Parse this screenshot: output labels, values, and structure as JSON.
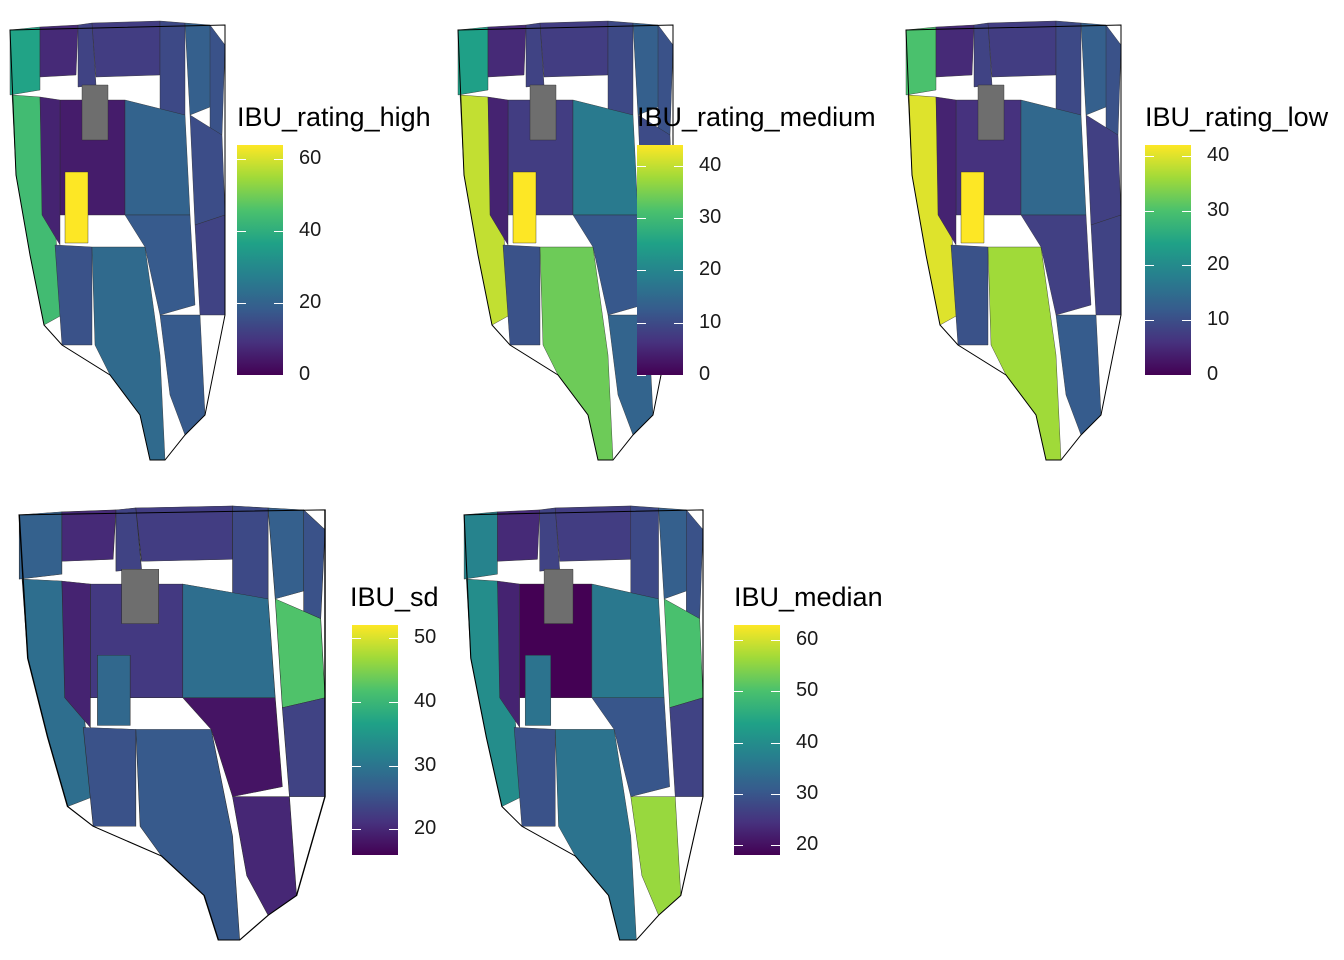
{
  "palette": {
    "viridis": [
      "#440154",
      "#46327e",
      "#365c8d",
      "#277f8e",
      "#1fa187",
      "#4ac16d",
      "#a0da39",
      "#fde725"
    ],
    "missing": "#6e6e6e",
    "outline": "#000000"
  },
  "maps": [
    {
      "id": "ibu-rating-high",
      "legend": {
        "title": "IBU_rating_high",
        "ticks": [
          "0",
          "20",
          "40",
          "60"
        ],
        "tick_values": [
          0,
          20,
          40,
          60
        ],
        "range": [
          0,
          64
        ]
      },
      "highlights": {
        "west-coast": 44,
        "utah": 64,
        "washington": 37,
        "north-central": 5,
        "midwest": 20,
        "south": 18,
        "texas": 22,
        "florida": 18,
        "northeast": 15
      }
    },
    {
      "id": "ibu-rating-medium",
      "legend": {
        "title": "IBU_rating_medium",
        "ticks": [
          "0",
          "10",
          "20",
          "30",
          "40"
        ],
        "tick_values": [
          0,
          10,
          20,
          30,
          40
        ],
        "range": [
          0,
          44
        ]
      },
      "highlights": {
        "west-coast": 40,
        "utah": 44,
        "washington": 25,
        "north-central": 8,
        "midwest": 18,
        "south": 12,
        "texas": 34,
        "florida": 14,
        "northeast": 10
      }
    },
    {
      "id": "ibu-rating-low",
      "legend": {
        "title": "IBU_rating_low",
        "ticks": [
          "0",
          "10",
          "20",
          "30",
          "40"
        ],
        "tick_values": [
          0,
          10,
          20,
          30,
          40
        ],
        "range": [
          0,
          42
        ]
      },
      "highlights": {
        "west-coast": 40,
        "utah": 42,
        "washington": 30,
        "north-central": 6,
        "midwest": 14,
        "south": 8,
        "texas": 36,
        "florida": 12,
        "northeast": 8
      }
    },
    {
      "id": "ibu-sd",
      "legend": {
        "title": "IBU_sd",
        "ticks": [
          "20",
          "30",
          "40",
          "50"
        ],
        "tick_values": [
          20,
          30,
          40,
          50
        ],
        "range": [
          16,
          52
        ]
      },
      "highlights": {
        "west-coast": 29,
        "utah": 28,
        "washington": 27,
        "north-central": 22,
        "midwest": 29,
        "south": 18,
        "texas": 26,
        "florida": 20,
        "northeast": 42
      }
    },
    {
      "id": "ibu-median",
      "legend": {
        "title": "IBU_median",
        "ticks": [
          "20",
          "30",
          "40",
          "50",
          "60"
        ],
        "tick_values": [
          20,
          30,
          40,
          50,
          60
        ],
        "range": [
          18,
          63
        ]
      },
      "highlights": {
        "west-coast": 40,
        "utah": 35,
        "washington": 38,
        "north-central": 18,
        "midwest": 36,
        "south": 30,
        "texas": 35,
        "florida": 56,
        "northeast": 50
      }
    }
  ]
}
